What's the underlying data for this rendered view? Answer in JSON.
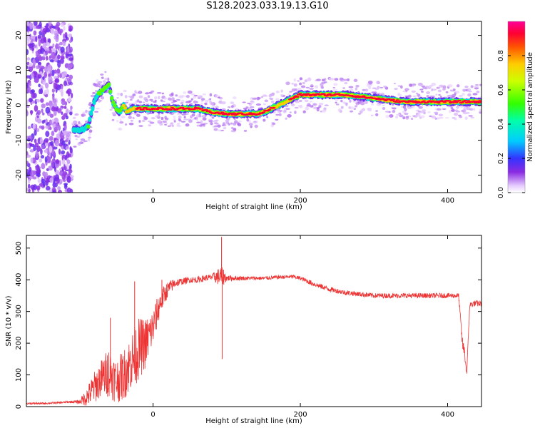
{
  "page_title": "S128.2023.033.19.13.G10",
  "chart_data": [
    {
      "type": "heatmap",
      "title": "",
      "xlabel": "Height of straight line (km)",
      "ylabel": "Frequency (Hz)",
      "xlim": [
        -172,
        446
      ],
      "ylim": [
        -25,
        24
      ],
      "xticks": [
        0,
        200,
        400
      ],
      "xtick_labels": [
        "0",
        "200",
        "400"
      ],
      "yticks": [
        -20,
        -10,
        0,
        10,
        20
      ],
      "ytick_labels": [
        "-20",
        "-10",
        "0",
        "10",
        "20"
      ],
      "colorbar": {
        "label": "Normalized spectral amplitude",
        "range": [
          0,
          1
        ],
        "ticks": [
          0.0,
          0.2,
          0.4,
          0.6,
          0.8
        ],
        "tick_labels": [
          "0.0",
          "0.2",
          "0.4",
          "0.6",
          "0.8"
        ]
      },
      "ridge": {
        "x": [
          -100,
          -95,
          -88,
          -80,
          -75,
          -70,
          -65,
          -60,
          -55,
          -50,
          -45,
          -40,
          -35,
          -30,
          -20,
          0,
          20,
          40,
          60,
          80,
          100,
          120,
          140,
          150,
          160,
          170,
          180,
          190,
          200,
          210,
          220,
          240,
          260,
          280,
          300,
          320,
          340,
          360,
          380,
          400,
          420,
          446
        ],
        "freq": [
          -7,
          -7,
          -6,
          1,
          3,
          4,
          5,
          6,
          1,
          -1,
          -2,
          0,
          -2,
          -1,
          -1,
          -1,
          -1,
          -1,
          -1,
          -2,
          -2.5,
          -2.5,
          -2.5,
          -2,
          -1,
          0,
          1,
          2,
          3,
          3,
          3,
          3,
          3,
          2.5,
          2,
          1.5,
          1,
          1,
          1,
          1,
          1,
          1
        ],
        "amp": [
          0.3,
          0.4,
          0.5,
          0.4,
          0.5,
          0.5,
          0.6,
          0.6,
          0.6,
          0.6,
          0.6,
          0.7,
          0.7,
          0.8,
          0.9,
          0.95,
          0.9,
          0.9,
          0.9,
          0.9,
          0.95,
          0.95,
          0.9,
          0.9,
          0.9,
          0.85,
          0.85,
          0.9,
          0.95,
          0.95,
          0.95,
          0.95,
          0.95,
          0.95,
          0.9,
          0.9,
          0.9,
          0.95,
          0.95,
          0.95,
          0.95,
          0.9
        ]
      },
      "noise_region_x": [
        -172,
        -110
      ]
    },
    {
      "type": "line",
      "title": "",
      "xlabel": "Height of straight line (km)",
      "ylabel": "SNR (10 * v/v)",
      "xlim": [
        -172,
        446
      ],
      "ylim": [
        0,
        540
      ],
      "xticks": [
        0,
        200,
        400
      ],
      "xtick_labels": [
        "0",
        "200",
        "400"
      ],
      "yticks": [
        0,
        100,
        200,
        300,
        400,
        500
      ],
      "ytick_labels": [
        "0",
        "100",
        "200",
        "300",
        "400",
        "500"
      ],
      "color": "#ee3333",
      "series": [
        {
          "name": "SNR",
          "x": [
            -172,
            -150,
            -130,
            -110,
            -100,
            -90,
            -80,
            -70,
            -60,
            -50,
            -40,
            -30,
            -20,
            -10,
            0,
            10,
            20,
            30,
            40,
            50,
            60,
            70,
            80,
            90,
            95,
            100,
            110,
            130,
            150,
            170,
            190,
            200,
            210,
            220,
            240,
            260,
            280,
            300,
            320,
            340,
            360,
            380,
            400,
            415,
            420,
            423,
            426,
            430,
            435,
            446
          ],
          "y": [
            10,
            10,
            12,
            15,
            15,
            30,
            60,
            90,
            110,
            80,
            100,
            140,
            180,
            200,
            250,
            330,
            370,
            390,
            395,
            400,
            400,
            405,
            408,
            410,
            410,
            405,
            405,
            405,
            405,
            408,
            410,
            405,
            395,
            385,
            370,
            360,
            355,
            350,
            350,
            350,
            350,
            350,
            350,
            350,
            200,
            170,
            105,
            320,
            325,
            325
          ],
          "noise": [
            3,
            3,
            3,
            4,
            6,
            30,
            50,
            60,
            80,
            70,
            80,
            90,
            100,
            80,
            60,
            40,
            25,
            15,
            10,
            10,
            10,
            10,
            10,
            30,
            30,
            10,
            8,
            6,
            6,
            6,
            6,
            6,
            8,
            8,
            8,
            8,
            8,
            8,
            8,
            8,
            8,
            8,
            8,
            8,
            20,
            20,
            10,
            10,
            10,
            10
          ],
          "spikes": [
            {
              "x": 93,
              "y": 535
            },
            {
              "x": 94,
              "y": 150
            },
            {
              "x": -58,
              "y": 280
            },
            {
              "x": -25,
              "y": 395
            },
            {
              "x": 12,
              "y": 400
            }
          ]
        }
      ]
    }
  ]
}
